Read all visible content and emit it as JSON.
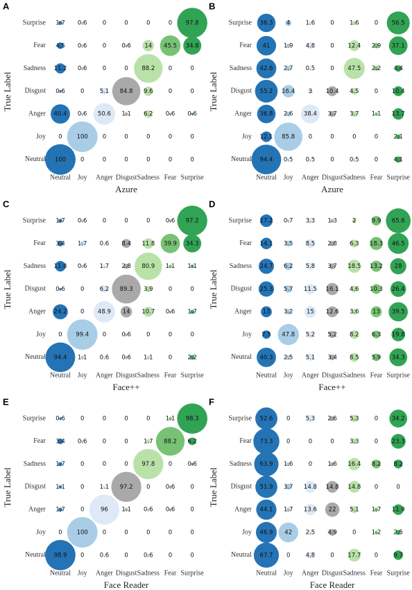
{
  "chart_data": [
    {
      "type": "bubble-matrix",
      "panel_label": "A",
      "xlabel": "Azure",
      "ylabel": "True Label",
      "categories": [
        "Neutral",
        "Joy",
        "Anger",
        "Disgust",
        "Sadness",
        "Fear",
        "Surprise"
      ],
      "rows": [
        "Surprise",
        "Fear",
        "Sadness",
        "Disgust",
        "Anger",
        "Joy",
        "Neutral"
      ],
      "colors": [
        "#2474b5",
        "#a9cde6",
        "#dde9f6",
        "#a9a9a9",
        "#b9e2a9",
        "#77c274",
        "#31a354"
      ],
      "values": [
        [
          1.7,
          0.6,
          0,
          0,
          0,
          0,
          97.8
        ],
        [
          4.5,
          0.6,
          0,
          0.6,
          14,
          45.5,
          34.8
        ],
        [
          11.2,
          0.6,
          0,
          0,
          88.2,
          0,
          0
        ],
        [
          0.6,
          0,
          5.1,
          84.8,
          9.6,
          0,
          0
        ],
        [
          40.4,
          0.6,
          50.6,
          1.1,
          6.2,
          0.6,
          0.6
        ],
        [
          0,
          100,
          0,
          0,
          0,
          0,
          0
        ],
        [
          100,
          0,
          0,
          0,
          0,
          0,
          0
        ]
      ]
    },
    {
      "type": "bubble-matrix",
      "panel_label": "B",
      "xlabel": "Azure",
      "ylabel": "True Label",
      "categories": [
        "Neutral",
        "Joy",
        "Anger",
        "Disgust",
        "Sadness",
        "Fear",
        "Surprise"
      ],
      "rows": [
        "Surprise",
        "Fear",
        "Sadness",
        "Disgust",
        "Anger",
        "Joy",
        "Neutral"
      ],
      "colors": [
        "#2474b5",
        "#a9cde6",
        "#dde9f6",
        "#a9a9a9",
        "#b9e2a9",
        "#77c274",
        "#31a354"
      ],
      "values": [
        [
          36.3,
          4,
          1.6,
          0,
          1.6,
          0,
          56.5
        ],
        [
          41,
          1.9,
          4.8,
          0,
          12.4,
          2.9,
          37.1
        ],
        [
          42.6,
          2.7,
          0.5,
          0,
          47.5,
          2.2,
          4.4
        ],
        [
          55.2,
          16.4,
          3,
          10.4,
          4.5,
          0,
          10.4
        ],
        [
          36.8,
          2.6,
          38.4,
          3.7,
          3.7,
          1.1,
          13.7
        ],
        [
          12.1,
          85.8,
          0,
          0,
          0,
          0,
          2.1
        ],
        [
          94.4,
          0.5,
          0.5,
          0,
          0.5,
          0,
          4.1
        ]
      ]
    },
    {
      "type": "bubble-matrix",
      "panel_label": "C",
      "xlabel": "Face++",
      "ylabel": "True Label",
      "categories": [
        "Neutral",
        "Joy",
        "Anger",
        "Disgust",
        "Sadness",
        "Fear",
        "Surprise"
      ],
      "rows": [
        "Surprise",
        "Fear",
        "Sadness",
        "Disgust",
        "Anger",
        "Joy",
        "Neutral"
      ],
      "colors": [
        "#2474b5",
        "#a9cde6",
        "#dde9f6",
        "#a9a9a9",
        "#b9e2a9",
        "#77c274",
        "#31a354"
      ],
      "values": [
        [
          1.7,
          0.6,
          0,
          0,
          0,
          0.6,
          97.2
        ],
        [
          3.4,
          1.7,
          0.6,
          8.4,
          11.8,
          39.9,
          34.3
        ],
        [
          11.8,
          0.6,
          1.7,
          2.8,
          80.9,
          1.1,
          1.1
        ],
        [
          0.6,
          0,
          6.2,
          89.3,
          3.9,
          0,
          0
        ],
        [
          24.2,
          0,
          48.9,
          14,
          10.7,
          0.6,
          1.7
        ],
        [
          0,
          99.4,
          0,
          0.6,
          0,
          0,
          0
        ],
        [
          94.4,
          1.1,
          0.6,
          0.6,
          1.1,
          0,
          2.2
        ]
      ]
    },
    {
      "type": "bubble-matrix",
      "panel_label": "D",
      "xlabel": "Face++",
      "ylabel": "True Label",
      "categories": [
        "Neutral",
        "Joy",
        "Anger",
        "Disgust",
        "Sadness",
        "Fear",
        "Surprise"
      ],
      "rows": [
        "Surprise",
        "Fear",
        "Sadness",
        "Disgust",
        "Anger",
        "Joy",
        "Neutral"
      ],
      "colors": [
        "#2474b5",
        "#a9cde6",
        "#dde9f6",
        "#a9a9a9",
        "#b9e2a9",
        "#77c274",
        "#31a354"
      ],
      "values": [
        [
          17.2,
          0.7,
          3.3,
          1.3,
          2,
          9.9,
          65.6
        ],
        [
          14.1,
          3.5,
          8.5,
          2.8,
          6.3,
          18.3,
          46.5
        ],
        [
          24.7,
          6.2,
          5.8,
          3.7,
          18.5,
          13.2,
          28
        ],
        [
          25.3,
          5.7,
          11.5,
          16.1,
          4.6,
          10.3,
          26.4
        ],
        [
          13,
          3.2,
          15,
          12.6,
          3.6,
          13,
          39.5
        ],
        [
          7.5,
          47.8,
          5.2,
          5.2,
          8.2,
          6.3,
          19.8
        ],
        [
          40.3,
          2.5,
          5.1,
          3.4,
          8.5,
          5.9,
          34.3
        ]
      ]
    },
    {
      "type": "bubble-matrix",
      "panel_label": "E",
      "xlabel": "Face Reader",
      "ylabel": "True Label",
      "categories": [
        "Neutral",
        "Joy",
        "Anger",
        "Disgust",
        "Sadness",
        "Fear",
        "Surprise"
      ],
      "rows": [
        "Surprise",
        "Fear",
        "Sadness",
        "Disgust",
        "Anger",
        "Joy",
        "Neutral"
      ],
      "colors": [
        "#2474b5",
        "#a9cde6",
        "#dde9f6",
        "#a9a9a9",
        "#b9e2a9",
        "#77c274",
        "#31a354"
      ],
      "values": [
        [
          0.6,
          0,
          0,
          0,
          0,
          1.1,
          98.3
        ],
        [
          3.4,
          0.6,
          0,
          0,
          1.7,
          88.2,
          6.2
        ],
        [
          1.7,
          0,
          0,
          0,
          97.8,
          0,
          0.6
        ],
        [
          1.1,
          0,
          1.1,
          97.2,
          0,
          0.6,
          0
        ],
        [
          1.7,
          0,
          96,
          1.1,
          0.6,
          0.6,
          0
        ],
        [
          0,
          100,
          0,
          0,
          0,
          0,
          0
        ],
        [
          98.9,
          0,
          0.6,
          0,
          0.6,
          0,
          0
        ]
      ]
    },
    {
      "type": "bubble-matrix",
      "panel_label": "F",
      "xlabel": "Face Reader",
      "ylabel": "True Label",
      "categories": [
        "Neutral",
        "Joy",
        "Anger",
        "Disgust",
        "Sadness",
        "Fear",
        "Surprise"
      ],
      "rows": [
        "Surprise",
        "Fear",
        "Sadness",
        "Disgust",
        "Anger",
        "Joy",
        "Neutral"
      ],
      "colors": [
        "#2474b5",
        "#a9cde6",
        "#dde9f6",
        "#a9a9a9",
        "#b9e2a9",
        "#77c274",
        "#31a354"
      ],
      "values": [
        [
          52.6,
          0,
          5.3,
          2.6,
          5.3,
          0,
          34.2
        ],
        [
          73.3,
          0,
          0,
          0,
          3.3,
          0,
          23.3
        ],
        [
          63.9,
          1.6,
          0,
          1.6,
          16.4,
          8.2,
          8.2
        ],
        [
          51.9,
          3.7,
          14.8,
          14.8,
          14.8,
          0,
          0
        ],
        [
          44.1,
          1.7,
          13.6,
          22,
          5.1,
          1.7,
          11.9
        ],
        [
          46.9,
          42,
          2.5,
          4.9,
          0,
          1.2,
          2.5
        ],
        [
          67.7,
          0,
          4.8,
          0,
          17.7,
          0,
          9.7
        ]
      ]
    }
  ]
}
